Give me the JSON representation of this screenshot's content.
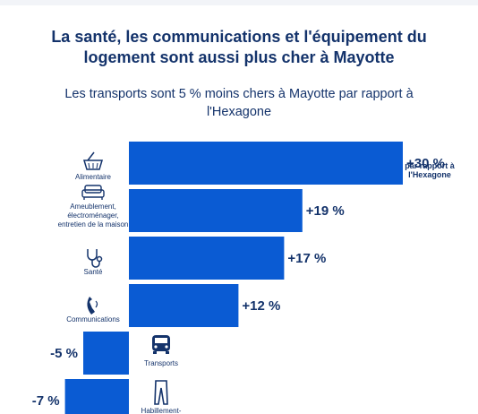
{
  "title": "La santé, les communications et l'équipement du logement sont aussi plus cher à Mayotte",
  "subtitle": "Les transports sont 5 % moins chers à Mayotte par rapport à l'Hexagone",
  "colors": {
    "bar": "#0a5bd3",
    "text": "#14336b"
  },
  "chart_data": {
    "type": "bar",
    "orientation": "horizontal",
    "categories": [
      {
        "label_lines": [
          "Alimentaire"
        ],
        "icon": "shopping-basket-icon"
      },
      {
        "label_lines": [
          "Ameublement,",
          "électroménager,",
          "entretien de la maison"
        ],
        "icon": "sofa-icon"
      },
      {
        "label_lines": [
          "Santé"
        ],
        "icon": "stethoscope-icon"
      },
      {
        "label_lines": [
          "Communications"
        ],
        "icon": "phone-icon"
      },
      {
        "label_lines": [
          "Transports"
        ],
        "icon": "bus-icon"
      },
      {
        "label_lines": [
          "Habillement-"
        ],
        "icon": "trousers-icon"
      }
    ],
    "values": [
      30,
      19,
      17,
      12,
      -5,
      -7
    ],
    "value_labels": [
      "+30 %",
      "+19 %",
      "+17 %",
      "+12 %",
      "-5 %",
      "-7 %"
    ],
    "annotation_lines": [
      "par rapport à",
      "l'Hexagone"
    ],
    "unit": "%"
  }
}
